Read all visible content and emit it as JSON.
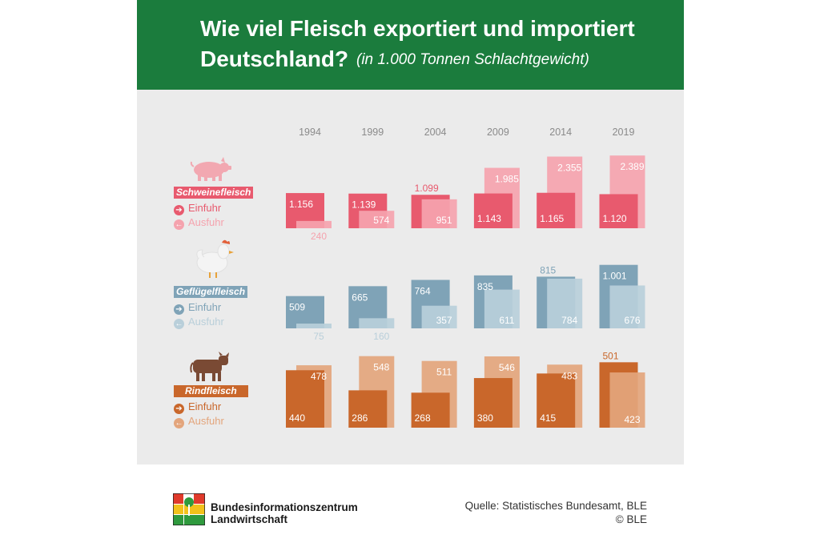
{
  "header": {
    "title_line1": "Wie viel Fleisch exportiert und importiert",
    "title_line2": "Deutschland?",
    "subtitle": "(in 1.000 Tonnen Schlachtgewicht)"
  },
  "colors": {
    "header_bg": "#1b7c3d",
    "panel_bg": "#ebebeb",
    "pork_import": "#e85a6e",
    "pork_export": "#f5a3ae",
    "poultry_import": "#7fa3b7",
    "poultry_export": "#b9cfda",
    "beef_import": "#c9672b",
    "beef_export": "#e3a57c"
  },
  "legend": {
    "import_label": "Einfuhr",
    "export_label": "Ausfuhr"
  },
  "chart_data": {
    "type": "bar",
    "categories": [
      "1994",
      "1999",
      "2004",
      "2009",
      "2014",
      "2019"
    ],
    "groups": [
      {
        "name": "Schweinefleisch",
        "icon": "pig-icon",
        "series": [
          {
            "name": "Einfuhr",
            "values": [
              1156,
              1139,
              1099,
              1143,
              1165,
              1120
            ],
            "labels": [
              "1.156",
              "1.139",
              "1.099",
              "1.143",
              "1.165",
              "1.120"
            ]
          },
          {
            "name": "Ausfuhr",
            "values": [
              240,
              574,
              951,
              1985,
              2355,
              2389
            ],
            "labels": [
              "240",
              "574",
              "951",
              "1.985",
              "2.355",
              "2.389"
            ]
          }
        ]
      },
      {
        "name": "Geflügelfleisch",
        "icon": "chicken-icon",
        "series": [
          {
            "name": "Einfuhr",
            "values": [
              509,
              665,
              764,
              835,
              815,
              1001
            ],
            "labels": [
              "509",
              "665",
              "764",
              "835",
              "815",
              "1.001"
            ]
          },
          {
            "name": "Ausfuhr",
            "values": [
              75,
              160,
              357,
              611,
              784,
              676
            ],
            "labels": [
              "75",
              "160",
              "357",
              "611",
              "784",
              "676"
            ]
          }
        ]
      },
      {
        "name": "Rindfleisch",
        "icon": "cow-icon",
        "series": [
          {
            "name": "Einfuhr",
            "values": [
              440,
              286,
              268,
              380,
              415,
              501
            ],
            "labels": [
              "440",
              "286",
              "268",
              "380",
              "415",
              "501"
            ]
          },
          {
            "name": "Ausfuhr",
            "values": [
              478,
              548,
              511,
              546,
              483,
              423
            ],
            "labels": [
              "478",
              "548",
              "511",
              "546",
              "483",
              "423"
            ]
          }
        ]
      }
    ]
  },
  "footer": {
    "org_line1": "Bundesinformationszentrum",
    "org_line2": "Landwirtschaft",
    "source": "Quelle: Statistisches Bundesamt, BLE",
    "copyright": "© BLE"
  }
}
